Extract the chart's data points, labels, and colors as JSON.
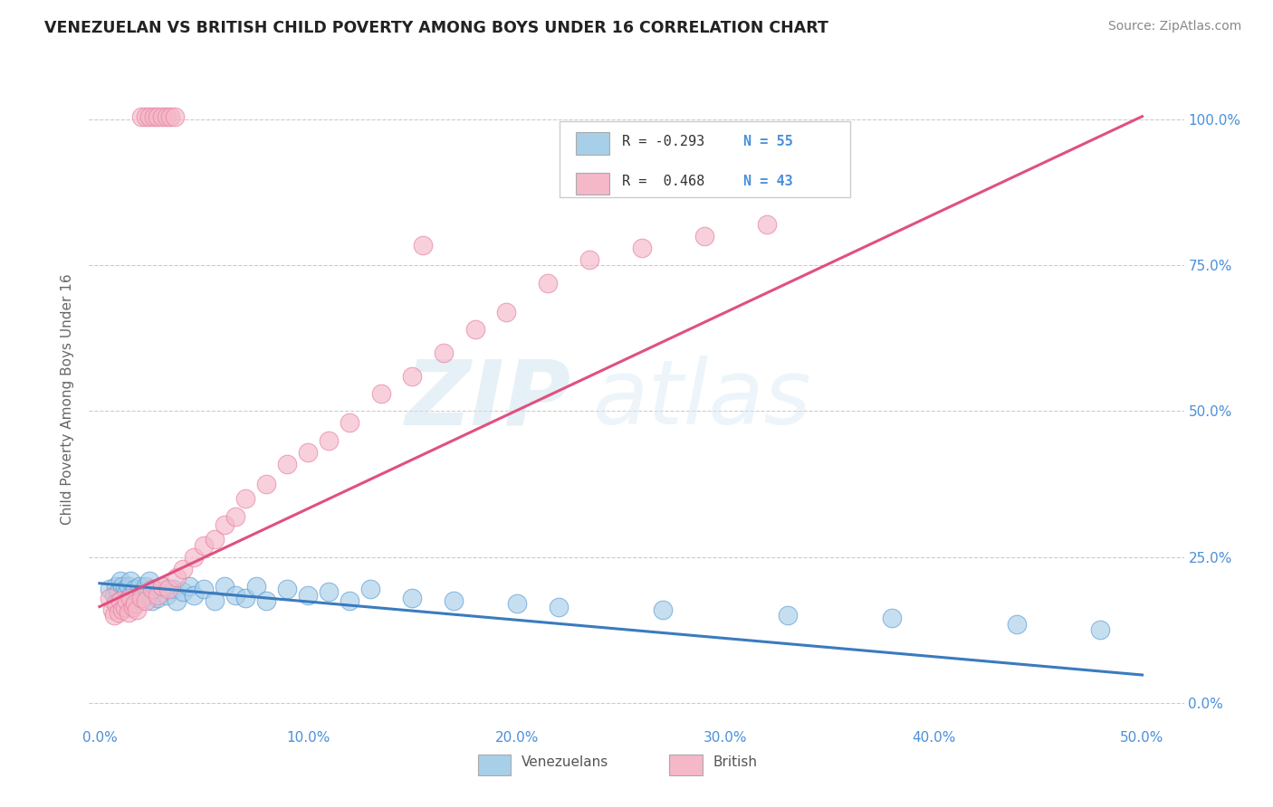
{
  "title": "VENEZUELAN VS BRITISH CHILD POVERTY AMONG BOYS UNDER 16 CORRELATION CHART",
  "source": "Source: ZipAtlas.com",
  "ylabel_label": "Child Poverty Among Boys Under 16",
  "xlim": [
    -0.005,
    0.52
  ],
  "ylim": [
    -0.04,
    1.08
  ],
  "watermark_zip": "ZIP",
  "watermark_atlas": "atlas",
  "blue_color": "#a8cfe8",
  "pink_color": "#f4b8c8",
  "blue_edge_color": "#5b9bd5",
  "pink_edge_color": "#e87fa0",
  "blue_line_color": "#3a7bbf",
  "pink_line_color": "#e05080",
  "title_color": "#222222",
  "axis_tick_color": "#4a90d9",
  "ylabel_color": "#666666",
  "grid_color": "#cccccc",
  "source_color": "#888888",
  "venezuelan_scatter_x": [
    0.005,
    0.007,
    0.008,
    0.009,
    0.01,
    0.01,
    0.011,
    0.011,
    0.012,
    0.012,
    0.013,
    0.013,
    0.014,
    0.015,
    0.015,
    0.016,
    0.017,
    0.018,
    0.019,
    0.02,
    0.021,
    0.022,
    0.023,
    0.024,
    0.025,
    0.026,
    0.028,
    0.03,
    0.032,
    0.035,
    0.037,
    0.04,
    0.043,
    0.045,
    0.05,
    0.055,
    0.06,
    0.065,
    0.07,
    0.075,
    0.08,
    0.09,
    0.1,
    0.11,
    0.12,
    0.13,
    0.15,
    0.17,
    0.2,
    0.22,
    0.27,
    0.33,
    0.38,
    0.44,
    0.48
  ],
  "venezuelan_scatter_y": [
    0.195,
    0.185,
    0.2,
    0.19,
    0.175,
    0.21,
    0.18,
    0.2,
    0.185,
    0.195,
    0.175,
    0.19,
    0.2,
    0.185,
    0.21,
    0.175,
    0.195,
    0.18,
    0.2,
    0.175,
    0.19,
    0.2,
    0.185,
    0.21,
    0.175,
    0.195,
    0.18,
    0.2,
    0.185,
    0.195,
    0.175,
    0.19,
    0.2,
    0.185,
    0.195,
    0.175,
    0.2,
    0.185,
    0.18,
    0.2,
    0.175,
    0.195,
    0.185,
    0.19,
    0.175,
    0.195,
    0.18,
    0.175,
    0.17,
    0.165,
    0.16,
    0.15,
    0.145,
    0.135,
    0.125
  ],
  "british_scatter_x": [
    0.005,
    0.006,
    0.007,
    0.008,
    0.009,
    0.01,
    0.011,
    0.012,
    0.013,
    0.014,
    0.015,
    0.016,
    0.017,
    0.018,
    0.02,
    0.022,
    0.025,
    0.028,
    0.03,
    0.033,
    0.037,
    0.04,
    0.045,
    0.05,
    0.055,
    0.06,
    0.065,
    0.07,
    0.08,
    0.09,
    0.1,
    0.11,
    0.12,
    0.135,
    0.15,
    0.165,
    0.18,
    0.195,
    0.215,
    0.235,
    0.26,
    0.29,
    0.32
  ],
  "british_scatter_y": [
    0.18,
    0.16,
    0.15,
    0.17,
    0.155,
    0.175,
    0.16,
    0.165,
    0.175,
    0.155,
    0.18,
    0.165,
    0.17,
    0.16,
    0.18,
    0.175,
    0.195,
    0.185,
    0.2,
    0.195,
    0.215,
    0.23,
    0.25,
    0.27,
    0.28,
    0.305,
    0.32,
    0.35,
    0.375,
    0.41,
    0.43,
    0.45,
    0.48,
    0.53,
    0.56,
    0.6,
    0.64,
    0.67,
    0.72,
    0.76,
    0.78,
    0.8,
    0.82
  ],
  "pink_high_cluster_x": [
    0.02,
    0.022,
    0.024,
    0.026,
    0.028,
    0.03,
    0.032,
    0.034,
    0.036
  ],
  "pink_high_cluster_y": [
    1.005,
    1.005,
    1.005,
    1.005,
    1.005,
    1.005,
    1.005,
    1.005,
    1.005
  ],
  "pink_outlier_x": [
    0.155
  ],
  "pink_outlier_y": [
    0.785
  ],
  "blue_line_x0": 0.0,
  "blue_line_y0": 0.205,
  "blue_line_x1": 0.5,
  "blue_line_y1": 0.048,
  "pink_line_x0": 0.0,
  "pink_line_y0": 0.165,
  "pink_line_x1": 0.5,
  "pink_line_y1": 1.005
}
